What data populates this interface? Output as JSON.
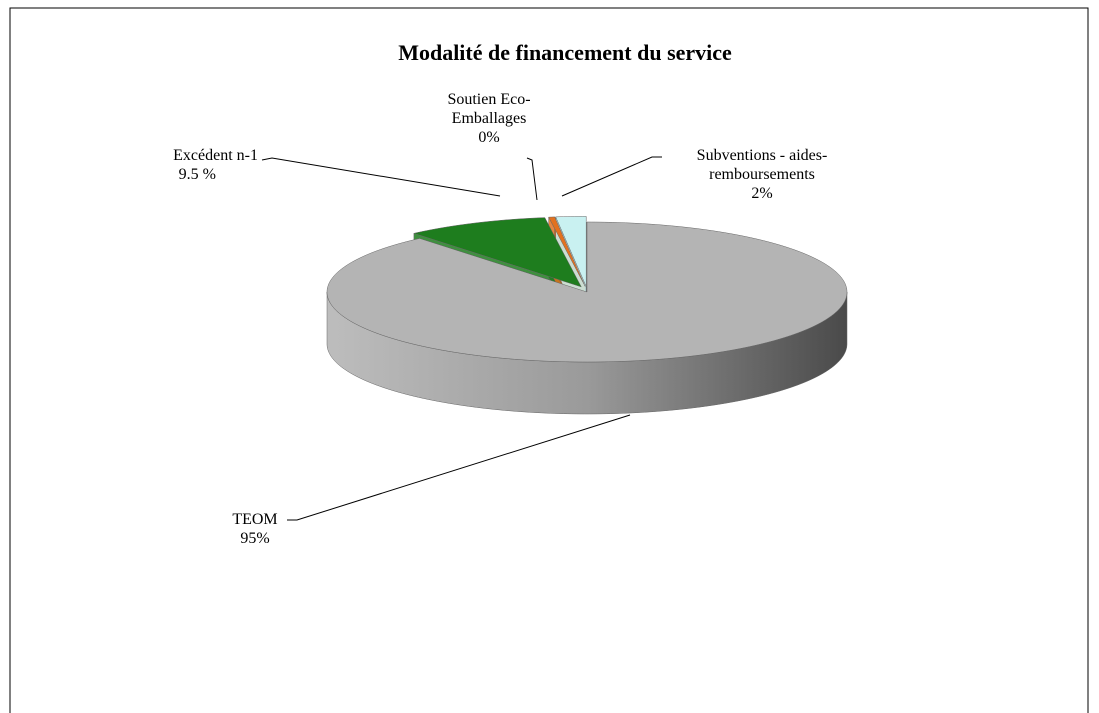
{
  "chart_data": {
    "type": "pie",
    "title": "Modalité de financement du service",
    "categories": [
      "TEOM",
      "Excédent n-1",
      "Soutien Eco-Emballages",
      "Subventions - aides-remboursements"
    ],
    "values": [
      95,
      9.5,
      0.4,
      2
    ],
    "value_labels": [
      "95%",
      "9.5 %",
      "0%",
      "2%"
    ],
    "colors": [
      "#b4b4b4",
      "#1e7d1e",
      "#e2711f",
      "#c9f1f1"
    ]
  }
}
